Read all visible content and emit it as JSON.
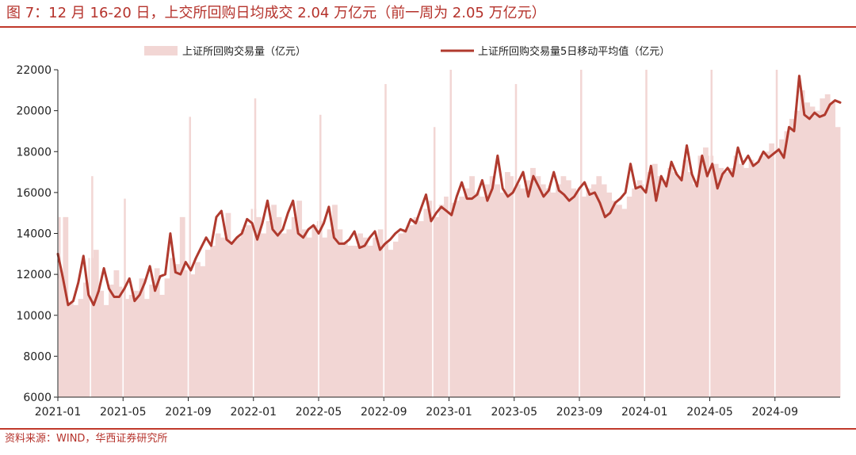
{
  "title": "图 7：12 月 16-20 日，上交所回购日均成交 2.04 万亿元（前一周为 2.05 万亿元）",
  "source": "资料来源：WIND，华西证券研究所",
  "colors": {
    "accent": "#b5322b",
    "bar": "#f2d6d4",
    "line": "#b03a2e"
  },
  "chart_data": {
    "type": "bar",
    "title": "图 7：12 月 16-20 日，上交所回购日均成交 2.04 万亿元（前一周为 2.05 万亿元）",
    "xlabel": "",
    "ylabel": "",
    "ylim": [
      6000,
      22000
    ],
    "yticks": [
      6000,
      8000,
      10000,
      12000,
      14000,
      16000,
      18000,
      20000,
      22000
    ],
    "xticks": [
      "2021-01",
      "2021-05",
      "2021-09",
      "2022-01",
      "2022-05",
      "2022-09",
      "2023-01",
      "2023-05",
      "2023-09",
      "2024-01",
      "2024-05",
      "2024-09"
    ],
    "legend": [
      "上证所回购交易量（亿元）",
      "上证所回购交易量5日移动平均值（亿元）"
    ],
    "legend_position": "top",
    "period": {
      "start": "2021-01",
      "end": "2024-12"
    },
    "series": [
      {
        "name": "上证所回购交易量（亿元）",
        "type": "bar",
        "values": [
          12000,
          14800,
          10600,
          10500,
          10800,
          11600,
          12800,
          13200,
          11200,
          10500,
          11500,
          12200,
          11400,
          10800,
          11000,
          11200,
          11800,
          10800,
          11500,
          12300,
          11000,
          11800,
          12800,
          12500,
          14800,
          12200,
          12000,
          12600,
          12400,
          13200,
          13400,
          14000,
          13800,
          15000,
          13600,
          13800,
          14200,
          14400,
          15200,
          14800,
          14000,
          14600,
          15400,
          14800,
          14000,
          14200,
          14800,
          15600,
          14200,
          13800,
          14400,
          14600,
          13800,
          14200,
          15400,
          14200,
          13600,
          13400,
          13400,
          14000,
          13800,
          13400,
          13800,
          14200,
          13500,
          13200,
          13600,
          14000,
          14200,
          14400,
          14800,
          14600,
          15200,
          15600,
          14800,
          15400,
          15800,
          15500,
          15600,
          15800,
          16200,
          16800,
          16000,
          15800,
          16400,
          16800,
          16400,
          16000,
          17000,
          16800,
          16400,
          16200,
          16600,
          17200,
          16800,
          16400,
          16200,
          16000,
          16400,
          16800,
          16600,
          16200,
          16000,
          15800,
          16200,
          16400,
          16800,
          16400,
          16000,
          15600,
          15400,
          15200,
          15800,
          16200,
          16600,
          16400,
          17000,
          17400,
          16800,
          16600,
          17200,
          17000,
          16800,
          17600,
          17000,
          16400,
          17800,
          18200,
          17800,
          17400,
          17200,
          17000,
          17200,
          17800,
          17400,
          17200,
          17600,
          17400,
          17800,
          18000,
          18400,
          18200,
          18600,
          19000,
          19600,
          20000,
          21000,
          20400,
          20200,
          20000,
          20600,
          20800,
          20400,
          19200
        ],
        "spikes": [
          {
            "date": "2021-01",
            "value": 14800
          },
          {
            "date": "2021-03",
            "value": 16800
          },
          {
            "date": "2021-05",
            "value": 15700
          },
          {
            "date": "2021-09",
            "value": 19700
          },
          {
            "date": "2022-01",
            "value": 20600
          },
          {
            "date": "2022-05",
            "value": 19800
          },
          {
            "date": "2022-09",
            "value": 21300
          },
          {
            "date": "2022-12",
            "value": 19200
          },
          {
            "date": "2023-01",
            "value": 22000
          },
          {
            "date": "2023-05",
            "value": 21300
          },
          {
            "date": "2023-09",
            "value": 22000
          },
          {
            "date": "2024-01",
            "value": 22000
          },
          {
            "date": "2024-05",
            "value": 22000
          },
          {
            "date": "2024-09",
            "value": 22000
          }
        ]
      },
      {
        "name": "上证所回购交易量5日移动平均值（亿元）",
        "type": "line",
        "values": [
          13000,
          11800,
          10500,
          10700,
          11600,
          12900,
          11000,
          10500,
          11200,
          12300,
          11300,
          10900,
          10900,
          11300,
          11800,
          10700,
          11000,
          11600,
          12400,
          11200,
          11900,
          12000,
          14000,
          12100,
          12000,
          12600,
          12200,
          12800,
          13300,
          13800,
          13400,
          14800,
          15100,
          13700,
          13500,
          13800,
          14000,
          14700,
          14500,
          13700,
          14500,
          15600,
          14200,
          13900,
          14200,
          15000,
          15600,
          14000,
          13800,
          14200,
          14400,
          14000,
          14500,
          15300,
          13800,
          13500,
          13500,
          13700,
          14100,
          13300,
          13400,
          13800,
          14100,
          13200,
          13500,
          13700,
          14000,
          14200,
          14100,
          14700,
          14500,
          15200,
          15900,
          14600,
          15000,
          15300,
          15100,
          14900,
          15800,
          16500,
          15700,
          15700,
          15900,
          16600,
          15600,
          16200,
          17800,
          16200,
          15800,
          16000,
          16500,
          17000,
          15800,
          16800,
          16300,
          15800,
          16100,
          17000,
          16100,
          15900,
          15600,
          15800,
          16200,
          16500,
          15900,
          16000,
          15500,
          14800,
          15000,
          15500,
          15700,
          16000,
          17400,
          16200,
          16300,
          16000,
          17300,
          15600,
          16800,
          16300,
          17500,
          16900,
          16600,
          18300,
          16900,
          16300,
          17800,
          16800,
          17400,
          16200,
          16900,
          17200,
          16800,
          18200,
          17400,
          17800,
          17300,
          17500,
          18000,
          17700,
          17900,
          18100,
          17700,
          19200,
          19000,
          21700,
          19800,
          19600,
          19900,
          19700,
          19800,
          20300,
          20500,
          20400
        ]
      }
    ]
  }
}
